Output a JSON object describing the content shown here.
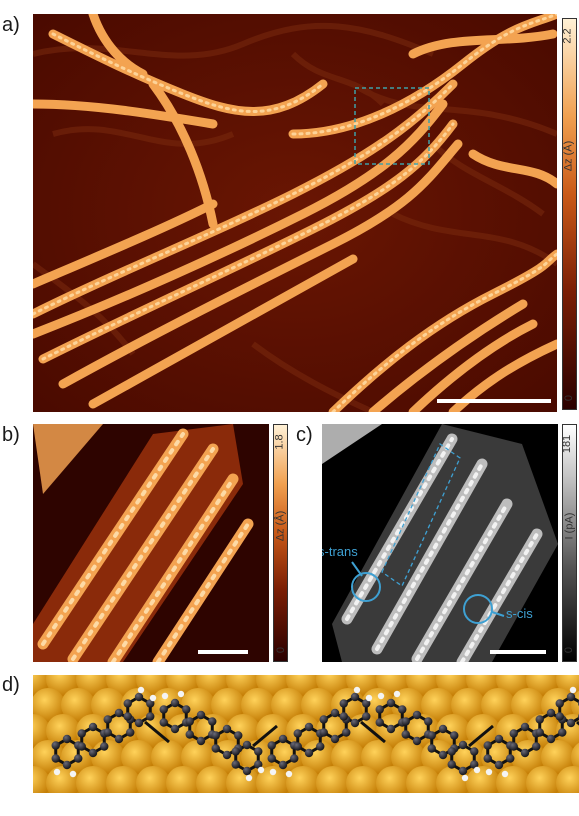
{
  "panels": {
    "a": {
      "label": "a)",
      "colorbar": {
        "max": "2.2",
        "min": "0",
        "axis_label": "Δz (Å)"
      }
    },
    "b": {
      "label": "b)",
      "colorbar": {
        "max": "1.8",
        "min": "0",
        "axis_label": "Δz (Å)"
      }
    },
    "c": {
      "label": "c)",
      "colorbar": {
        "max": "181",
        "min": "0",
        "axis_label": "I (pA)"
      },
      "annotations": {
        "s_trans": "s-trans",
        "s_cis": "s-cis"
      }
    },
    "d": {
      "label": "d)"
    }
  },
  "colors": {
    "stm_dark": "#5a0f00",
    "stm_bright": "#ffd9a0",
    "current_bright": "#f2f2f2",
    "annotation": "#3ea0d2",
    "substrate": "#e0a020",
    "carbon": "#1f1f26",
    "hydrogen": "#f4f4f4"
  }
}
